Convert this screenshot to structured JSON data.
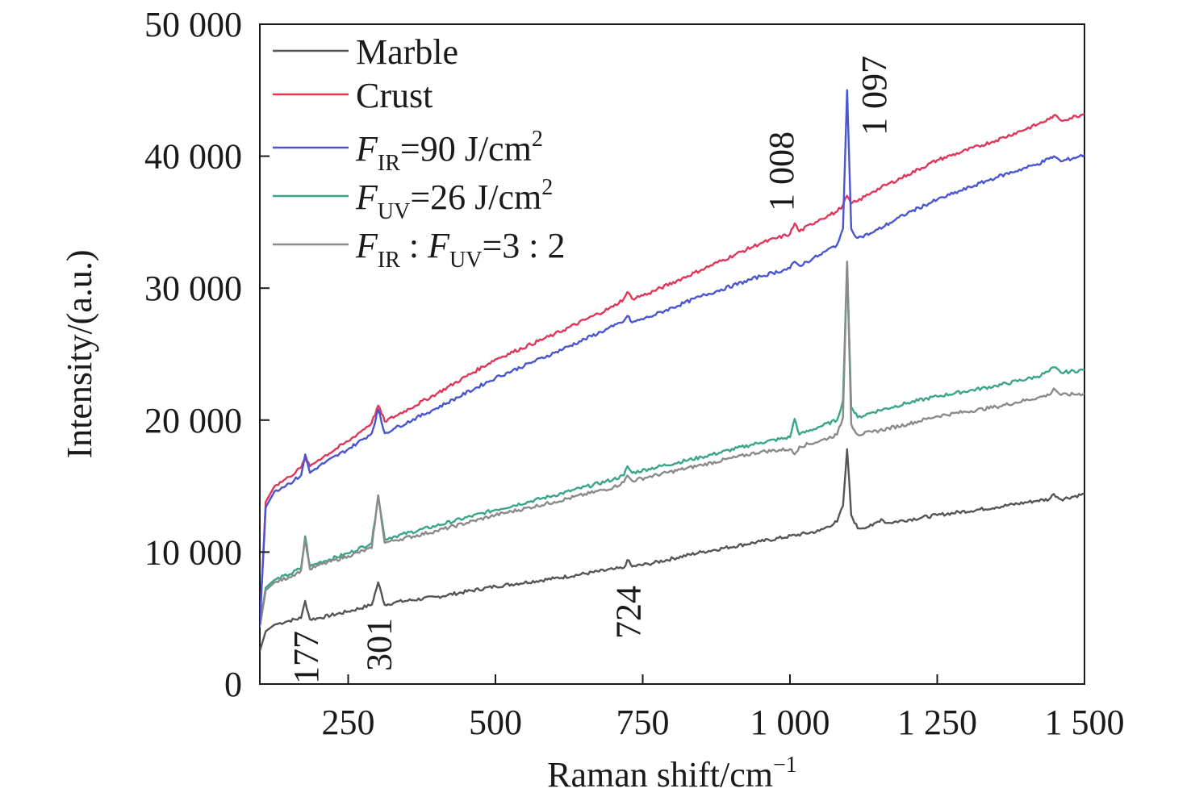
{
  "chart_data": {
    "type": "line",
    "xlabel": "Raman shift/cm",
    "xlabel_sup": "−1",
    "ylabel": "Intensity/(a.u.)",
    "xlim": [
      100,
      1500
    ],
    "ylim": [
      0,
      50000
    ],
    "x_ticks": [
      {
        "value": 250,
        "label": "250"
      },
      {
        "value": 500,
        "label": "500"
      },
      {
        "value": 750,
        "label": "750"
      },
      {
        "value": 1000,
        "label": "1 000"
      },
      {
        "value": 1250,
        "label": "1 250"
      },
      {
        "value": 1500,
        "label": "1 500"
      }
    ],
    "y_ticks": [
      {
        "value": 0,
        "label": "0"
      },
      {
        "value": 10000,
        "label": "10 000"
      },
      {
        "value": 20000,
        "label": "20 000"
      },
      {
        "value": 30000,
        "label": "30 000"
      },
      {
        "value": 40000,
        "label": "40 000"
      },
      {
        "value": 50000,
        "label": "50 000"
      }
    ],
    "grid": false,
    "legend_position": "top-left",
    "legend": [
      {
        "main": "Marble",
        "color": "#555555"
      },
      {
        "main": "Crust",
        "color": "#e0365a"
      },
      {
        "main": "F",
        "sub": "IR",
        "rest": "=90 J/cm",
        "sup": "2",
        "color": "#4a55d0"
      },
      {
        "main": "F",
        "sub": "UV",
        "rest": "=26 J/cm",
        "sup": "2",
        "color": "#3aa58a"
      },
      {
        "main": "F",
        "sub": "IR",
        "mid": " : F",
        "sub2": "UV",
        "rest": "=3 : 2",
        "color": "#8a8a8a"
      }
    ],
    "peak_labels": [
      {
        "text": "177",
        "x": 177,
        "y": 0
      },
      {
        "text": "301",
        "x": 301,
        "y": 0
      },
      {
        "text": "724",
        "x": 724,
        "y": 3600
      },
      {
        "text": "1 008",
        "x": 1008,
        "y": 34500
      },
      {
        "text": "1 097",
        "x": 1097,
        "y": 41000
      }
    ],
    "series": [
      {
        "name": "Marble",
        "color": "#555555",
        "x": [
          100,
          110,
          125,
          150,
          170,
          177,
          185,
          200,
          250,
          290,
          301,
          312,
          330,
          400,
          500,
          600,
          700,
          718,
          724,
          732,
          760,
          850,
          950,
          1050,
          1080,
          1090,
          1097,
          1104,
          1115,
          1140,
          1155,
          1165,
          1250,
          1350,
          1420,
          1440,
          1448,
          1460,
          1500
        ],
        "y": [
          2500,
          4000,
          4500,
          4800,
          5000,
          6300,
          4900,
          5000,
          5500,
          6000,
          7700,
          6000,
          6200,
          6600,
          7400,
          8000,
          8700,
          8800,
          9400,
          8900,
          9100,
          10000,
          10800,
          11600,
          12300,
          13500,
          17800,
          12800,
          11800,
          12000,
          12500,
          12200,
          12800,
          13400,
          13900,
          14000,
          14400,
          14000,
          14400
        ]
      },
      {
        "name": "F_UV",
        "color": "#3aa58a",
        "x": [
          100,
          110,
          125,
          150,
          170,
          177,
          185,
          200,
          250,
          290,
          301,
          312,
          330,
          400,
          500,
          600,
          700,
          718,
          724,
          732,
          760,
          850,
          950,
          1000,
          1008,
          1016,
          1050,
          1080,
          1090,
          1097,
          1104,
          1115,
          1140,
          1200,
          1250,
          1350,
          1420,
          1440,
          1448,
          1460,
          1500
        ],
        "y": [
          4500,
          7300,
          7900,
          8300,
          8800,
          11200,
          8900,
          9200,
          9900,
          10700,
          14300,
          11000,
          11200,
          12000,
          13200,
          14300,
          15500,
          15800,
          16500,
          16000,
          16300,
          17200,
          18300,
          18700,
          20100,
          18900,
          19500,
          20000,
          21500,
          32000,
          21000,
          20200,
          20600,
          21300,
          21800,
          22600,
          23300,
          23700,
          24000,
          23600,
          23800
        ]
      },
      {
        "name": "F_IR : F_UV",
        "color": "#8a8a8a",
        "x": [
          100,
          110,
          125,
          150,
          170,
          177,
          185,
          200,
          250,
          290,
          301,
          312,
          330,
          400,
          500,
          600,
          700,
          718,
          724,
          732,
          760,
          850,
          950,
          1000,
          1008,
          1016,
          1050,
          1080,
          1090,
          1097,
          1104,
          1115,
          1140,
          1200,
          1250,
          1350,
          1420,
          1440,
          1448,
          1460,
          1500
        ],
        "y": [
          4300,
          7100,
          7700,
          8100,
          8600,
          11000,
          8700,
          9000,
          9700,
          10300,
          14300,
          10700,
          10900,
          11600,
          12800,
          13800,
          14900,
          15300,
          15800,
          15400,
          15700,
          16600,
          17600,
          17800,
          17400,
          18000,
          18400,
          18900,
          20200,
          32000,
          19700,
          18900,
          19100,
          19700,
          20300,
          21000,
          21700,
          21900,
          22400,
          21900,
          22000
        ]
      },
      {
        "name": "Crust",
        "color": "#e0365a",
        "x": [
          100,
          110,
          125,
          150,
          170,
          177,
          185,
          200,
          250,
          290,
          301,
          312,
          330,
          400,
          500,
          600,
          700,
          718,
          724,
          732,
          760,
          850,
          950,
          1000,
          1008,
          1016,
          1050,
          1080,
          1090,
          1097,
          1104,
          1115,
          1140,
          1200,
          1250,
          1350,
          1420,
          1440,
          1448,
          1460,
          1500
        ],
        "y": [
          4500,
          13800,
          15000,
          15700,
          16400,
          17100,
          16500,
          17000,
          18400,
          19800,
          21100,
          19900,
          20300,
          22000,
          24600,
          26500,
          28600,
          29200,
          29700,
          29200,
          29600,
          31400,
          33400,
          34100,
          34900,
          34300,
          35200,
          35800,
          36300,
          37000,
          36400,
          36600,
          37300,
          38600,
          39700,
          41200,
          42400,
          42800,
          43100,
          42700,
          43200
        ]
      },
      {
        "name": "F_IR",
        "color": "#4a55d0",
        "x": [
          100,
          110,
          125,
          150,
          170,
          177,
          185,
          200,
          250,
          290,
          301,
          312,
          330,
          400,
          500,
          600,
          700,
          718,
          724,
          732,
          760,
          850,
          950,
          1000,
          1008,
          1016,
          1050,
          1080,
          1090,
          1097,
          1104,
          1115,
          1140,
          1200,
          1250,
          1350,
          1420,
          1440,
          1448,
          1460,
          1500
        ],
        "y": [
          4500,
          13400,
          14600,
          15200,
          15800,
          17400,
          16000,
          16500,
          17800,
          19000,
          20800,
          19000,
          19400,
          20900,
          23200,
          25100,
          27100,
          27500,
          27900,
          27400,
          27800,
          29400,
          30900,
          31500,
          32000,
          31700,
          32500,
          33300,
          34500,
          45000,
          34500,
          33800,
          34200,
          35700,
          36700,
          38400,
          39400,
          39800,
          40000,
          39600,
          40100
        ]
      }
    ]
  }
}
